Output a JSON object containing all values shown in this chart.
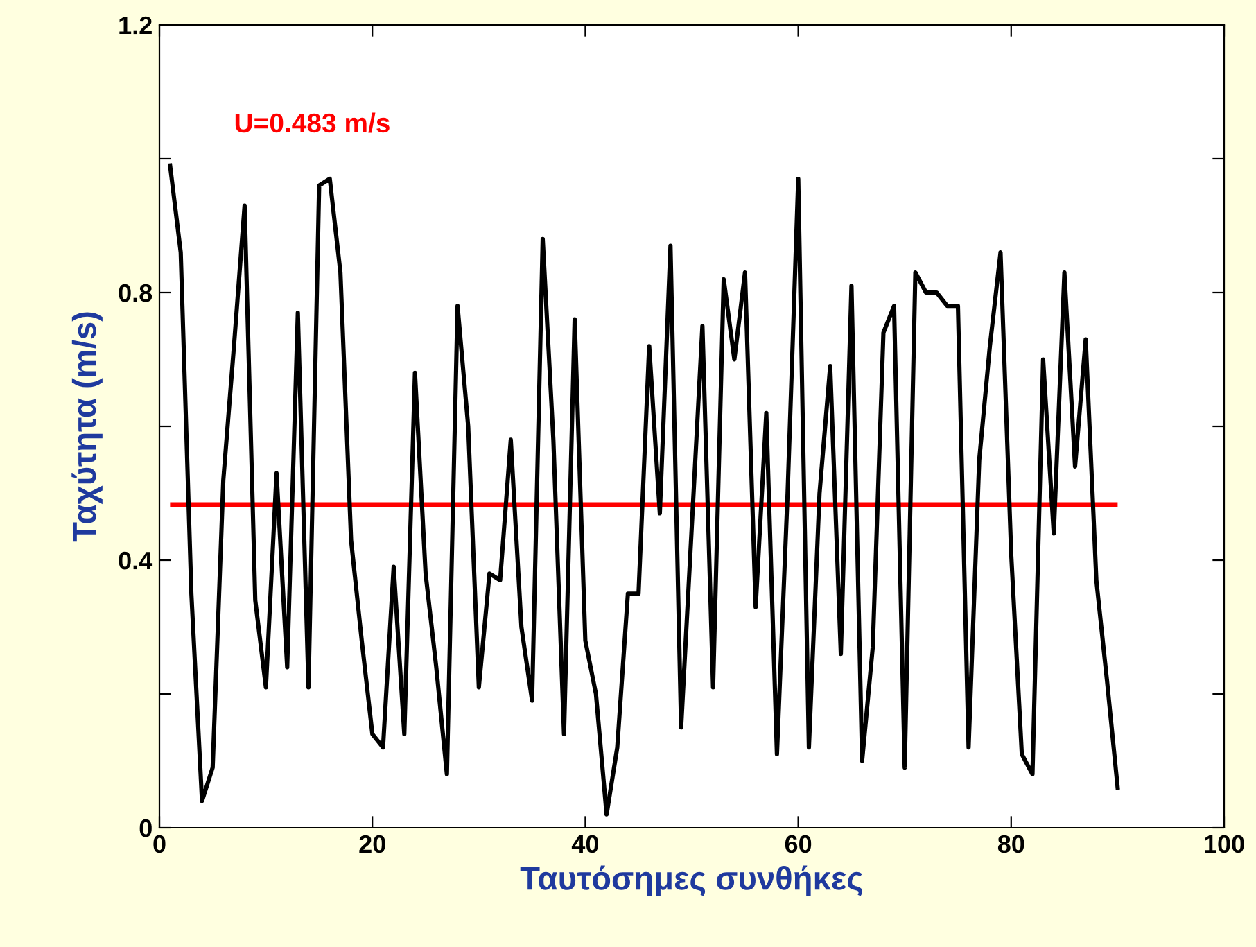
{
  "chart_data": {
    "type": "line",
    "xlabel": "Ταυτόσημες συνθήκες",
    "ylabel": "Ταχύτητα (m/s)",
    "x": [
      1,
      2,
      3,
      4,
      5,
      6,
      7,
      8,
      9,
      10,
      11,
      12,
      13,
      14,
      15,
      16,
      17,
      18,
      19,
      20,
      21,
      22,
      23,
      24,
      25,
      26,
      27,
      28,
      29,
      30,
      31,
      32,
      33,
      34,
      35,
      36,
      37,
      38,
      39,
      40,
      41,
      42,
      43,
      44,
      45,
      46,
      47,
      48,
      49,
      50,
      51,
      52,
      53,
      54,
      55,
      56,
      57,
      58,
      59,
      60,
      61,
      62,
      63,
      64,
      65,
      66,
      67,
      68,
      69,
      70,
      71,
      72,
      73,
      74,
      75,
      76,
      77,
      78,
      79,
      80,
      81,
      82,
      83,
      84,
      85,
      86,
      87,
      88,
      89,
      90
    ],
    "series": [
      {
        "color": "#000000",
        "values": [
          0.99,
          0.86,
          0.35,
          0.04,
          0.09,
          0.52,
          0.72,
          0.93,
          0.34,
          0.21,
          0.53,
          0.24,
          0.77,
          0.21,
          0.96,
          0.97,
          0.83,
          0.43,
          0.28,
          0.14,
          0.12,
          0.39,
          0.14,
          0.68,
          0.38,
          0.24,
          0.08,
          0.78,
          0.6,
          0.21,
          0.38,
          0.37,
          0.58,
          0.3,
          0.19,
          0.88,
          0.58,
          0.14,
          0.76,
          0.28,
          0.2,
          0.02,
          0.12,
          0.35,
          0.35,
          0.72,
          0.47,
          0.87,
          0.15,
          0.45,
          0.75,
          0.21,
          0.82,
          0.7,
          0.83,
          0.33,
          0.62,
          0.11,
          0.5,
          0.97,
          0.12,
          0.5,
          0.69,
          0.26,
          0.81,
          0.1,
          0.27,
          0.74,
          0.78,
          0.09,
          0.83,
          0.8,
          0.8,
          0.78,
          0.78,
          0.12,
          0.55,
          0.72,
          0.86,
          0.41,
          0.11,
          0.08,
          0.7,
          0.44,
          0.83,
          0.54,
          0.73,
          0.37,
          0.22,
          0.06
        ]
      }
    ],
    "ref_lines": [
      {
        "axis": "y",
        "value": 0.483,
        "label": "U=0.483 m/s",
        "color": "#ff0000"
      }
    ],
    "xlim": [
      0,
      100
    ],
    "xticks": [
      0,
      20,
      40,
      60,
      80,
      100
    ],
    "ylim": [
      0,
      1.2
    ],
    "yticks": [
      0,
      {
        "value": 0.2,
        "label": null
      },
      0.4,
      {
        "value": 0.6,
        "label": null
      },
      0.8,
      {
        "value": 1.0,
        "label": null
      },
      1.2
    ],
    "grid": false,
    "legend": false,
    "marker": "none",
    "line_style": "solid"
  }
}
